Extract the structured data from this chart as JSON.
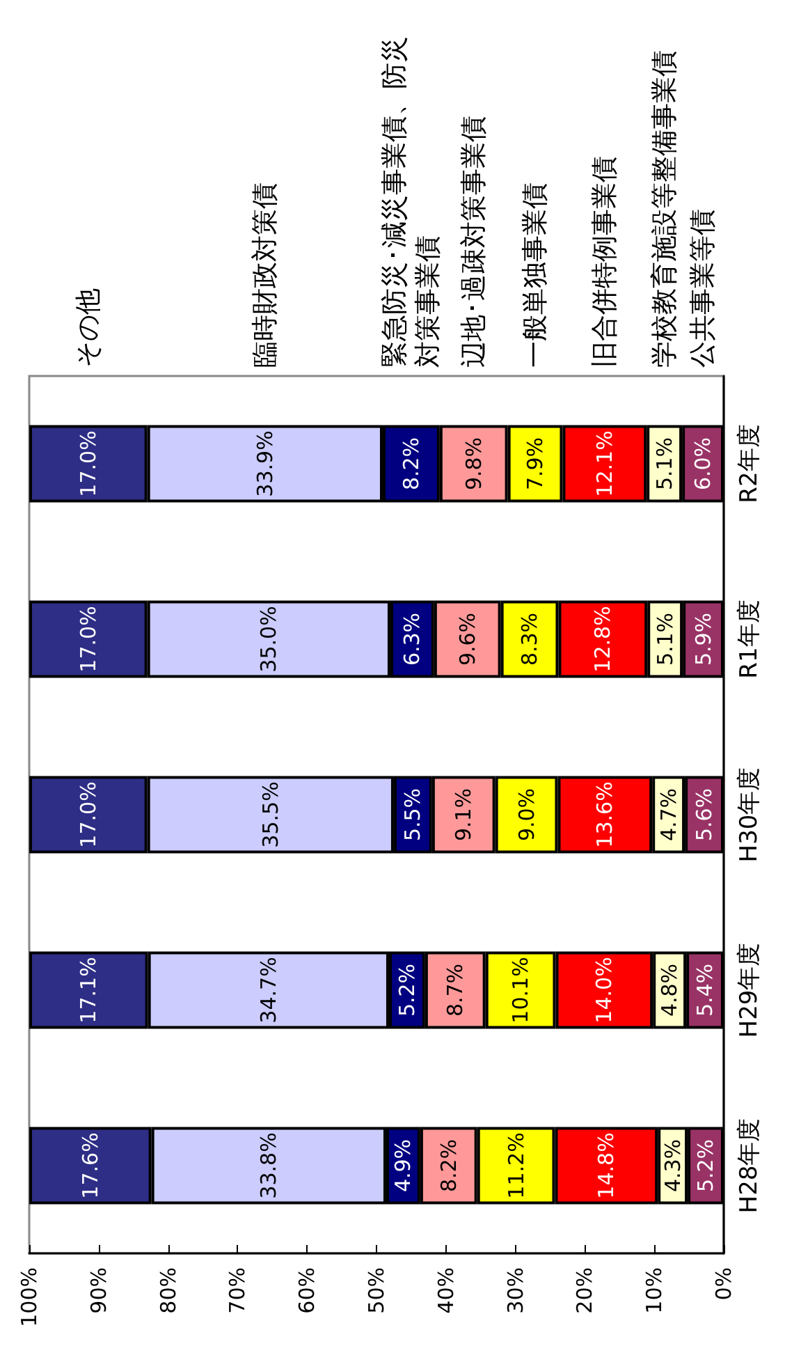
{
  "chart_data": {
    "type": "bar",
    "stacked": true,
    "orientation": "horizontal",
    "categories": [
      "R2年度",
      "R1年度",
      "H30年度",
      "H29年度",
      "H28年度"
    ],
    "xlim": [
      100,
      0
    ],
    "xticks": [
      {
        "value": 100,
        "label": "100%"
      },
      {
        "value": 90,
        "label": "90%"
      },
      {
        "value": 80,
        "label": "80%"
      },
      {
        "value": 70,
        "label": "70%"
      },
      {
        "value": 60,
        "label": "60%"
      },
      {
        "value": 50,
        "label": "50%"
      },
      {
        "value": 40,
        "label": "40%"
      },
      {
        "value": 30,
        "label": "30%"
      },
      {
        "value": 20,
        "label": "20%"
      },
      {
        "value": 10,
        "label": "10%"
      },
      {
        "value": 0,
        "label": "0%"
      }
    ],
    "grid": false,
    "legend": "top",
    "series": [
      {
        "name": "公共事業等債",
        "color": "#993366",
        "values": [
          6.0,
          5.9,
          5.6,
          5.4,
          5.2
        ],
        "value_labels": [
          "6.0%",
          "5.9%",
          "5.6%",
          "5.4%",
          "5.2%"
        ]
      },
      {
        "name": "学校教育施設等整備事業債",
        "color": "#ffffcc",
        "values": [
          5.1,
          5.1,
          4.7,
          4.8,
          4.3
        ],
        "value_labels": [
          "5.1%",
          "5.1%",
          "4.7%",
          "4.8%",
          "4.3%"
        ]
      },
      {
        "name": "旧合併特例事業債",
        "color": "#ff0000",
        "values": [
          12.1,
          12.8,
          13.6,
          14.0,
          14.8
        ],
        "value_labels": [
          "12.1%",
          "12.8%",
          "13.6%",
          "14.0%",
          "14.8%"
        ]
      },
      {
        "name": "一般単独事業債",
        "color": "#ffff00",
        "values": [
          7.9,
          8.3,
          9.0,
          10.1,
          11.2
        ],
        "value_labels": [
          "7.9%",
          "8.3%",
          "9.0%",
          "10.1%",
          "11.2%"
        ]
      },
      {
        "name": "辺地･過疎対策事業債",
        "color": "#ff9999",
        "values": [
          9.8,
          9.6,
          9.1,
          8.7,
          8.2
        ],
        "value_labels": [
          "9.8%",
          "9.6%",
          "9.1%",
          "8.7%",
          "8.2%"
        ]
      },
      {
        "name": "緊急防災･減災事業債、防災対策事業債",
        "color": "#000080",
        "values": [
          8.2,
          6.3,
          5.5,
          5.2,
          4.9
        ],
        "value_labels": [
          "8.2%",
          "6.3%",
          "5.5%",
          "5.2%",
          "4.9%"
        ]
      },
      {
        "name": "臨時財政対策債",
        "color": "#ccccff",
        "values": [
          33.9,
          35.0,
          35.5,
          34.7,
          33.8
        ],
        "value_labels": [
          "33.9%",
          "35.0%",
          "35.5%",
          "34.7%",
          "33.8%"
        ]
      },
      {
        "name": "その他",
        "color": "#2e2e86",
        "values": [
          17.0,
          17.0,
          17.0,
          17.1,
          17.6
        ],
        "value_labels": [
          "17.0%",
          "17.0%",
          "17.0%",
          "17.1%",
          "17.6%"
        ]
      }
    ]
  }
}
